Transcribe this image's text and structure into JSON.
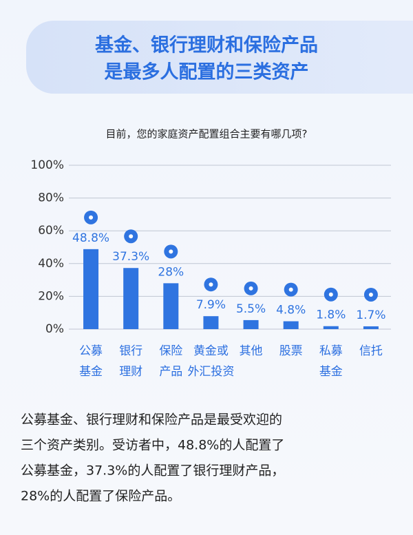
{
  "chart_data": {
    "type": "bar",
    "title": [
      "基金、银行理财和保险产品",
      "是最多人配置的三类资产"
    ],
    "subtitle": "目前，您的家庭资产配置组合主要有哪几项?",
    "categories": [
      [
        "公募",
        "基金"
      ],
      [
        "银行",
        "理财"
      ],
      [
        "保险",
        "产品"
      ],
      [
        "黄金或",
        "外汇投资"
      ],
      [
        "其他"
      ],
      [
        "股票"
      ],
      [
        "私募",
        "基金"
      ],
      [
        "信托"
      ]
    ],
    "values": [
      48.8,
      37.3,
      28,
      7.9,
      5.5,
      4.8,
      1.8,
      1.7
    ],
    "value_labels": [
      "48.8%",
      "37.3%",
      "28%",
      "7.9%",
      "5.5%",
      "4.8%",
      "1.8%",
      "1.7%"
    ],
    "color": "#2f74e0",
    "ylim": [
      0,
      100
    ],
    "yticks": [
      {
        "value": 0,
        "label": "0%"
      },
      {
        "value": 20,
        "label": "20%"
      },
      {
        "value": 40,
        "label": "40%"
      },
      {
        "value": 60,
        "label": "60%"
      },
      {
        "value": 80,
        "label": "80%"
      },
      {
        "value": 100,
        "label": "100%"
      }
    ],
    "grid": true,
    "description": [
      "公募基金、银行理财和保险产品是最受欢迎的",
      "三个资产类别。受访者中，48.8%的人配置了",
      "公募基金，37.3%的人配置了银行理财产品，",
      "28%的人配置了保险产品。"
    ]
  }
}
